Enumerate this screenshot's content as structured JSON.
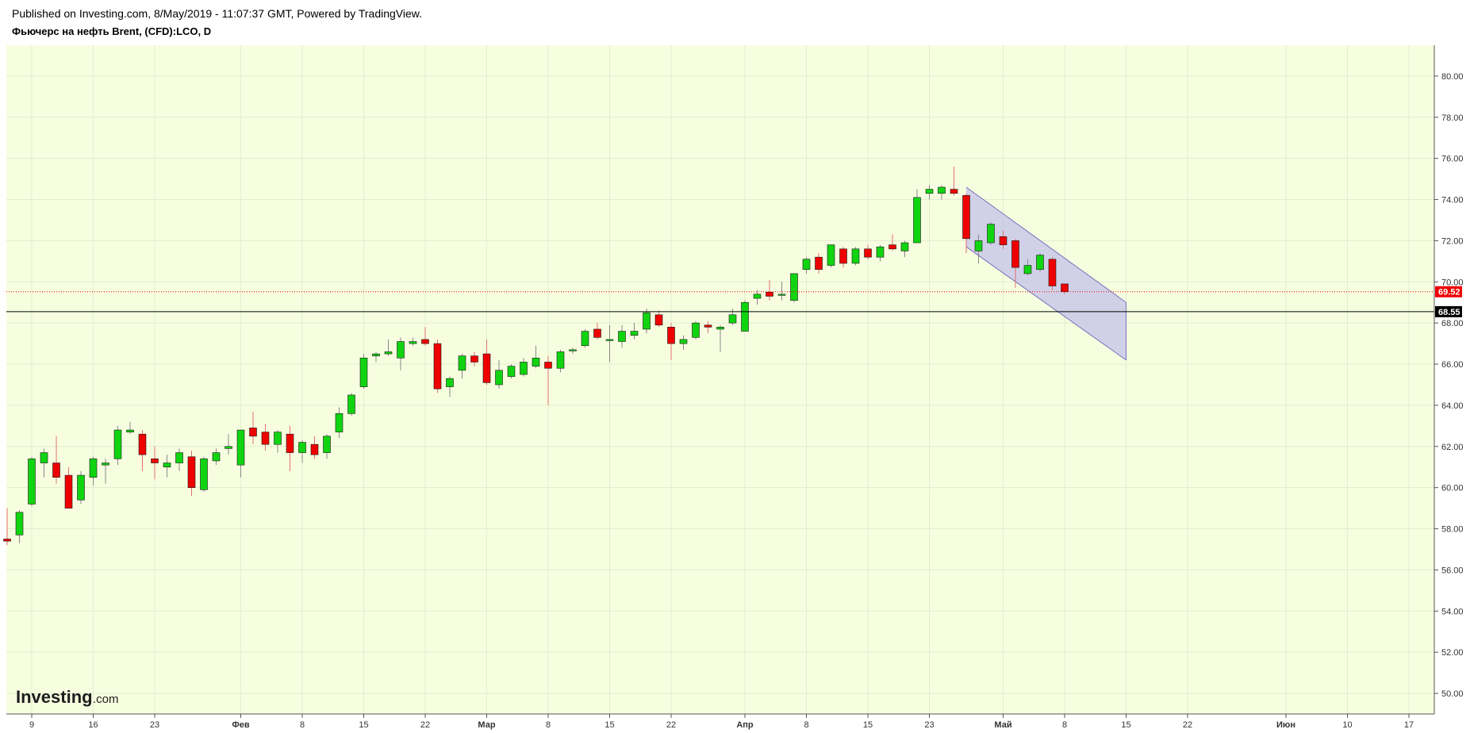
{
  "header": {
    "published": "Published on Investing.com, 8/May/2019 - 11:07:37 GMT, Powered by TradingView.",
    "symbol": "Фьючерс на нефть Brent, (CFD):LCO, D"
  },
  "logo": {
    "main": "Investing",
    "sub": ".com"
  },
  "colors": {
    "plot_bg": "#f7fee0",
    "up": "#11d411",
    "down": "#ef0000",
    "wick_up": "#888888",
    "wick_down": "#e07070",
    "channel_fill": "#c9c9e8",
    "channel_edge": "#7a6fbf",
    "last_price": "#ef0000",
    "ref_line": "#000000"
  },
  "chart_data": {
    "type": "candlestick",
    "title": "Фьючерс на нефть Brent, (CFD):LCO, D",
    "timeframe": "D",
    "ylim": [
      49,
      81.5
    ],
    "yticks": [
      "50.00",
      "52.00",
      "54.00",
      "56.00",
      "58.00",
      "60.00",
      "62.00",
      "64.00",
      "66.00",
      "68.00",
      "70.00",
      "72.00",
      "74.00",
      "76.00",
      "78.00",
      "80.00"
    ],
    "xlabels": [
      {
        "label": "9",
        "bold": false,
        "slot": 2
      },
      {
        "label": "16",
        "bold": false,
        "slot": 7
      },
      {
        "label": "23",
        "bold": false,
        "slot": 12
      },
      {
        "label": "Фев",
        "bold": true,
        "slot": 19
      },
      {
        "label": "8",
        "bold": false,
        "slot": 24
      },
      {
        "label": "15",
        "bold": false,
        "slot": 29
      },
      {
        "label": "22",
        "bold": false,
        "slot": 34
      },
      {
        "label": "Мар",
        "bold": true,
        "slot": 39
      },
      {
        "label": "8",
        "bold": false,
        "slot": 44
      },
      {
        "label": "15",
        "bold": false,
        "slot": 49
      },
      {
        "label": "22",
        "bold": false,
        "slot": 54
      },
      {
        "label": "Апр",
        "bold": true,
        "slot": 60
      },
      {
        "label": "8",
        "bold": false,
        "slot": 65
      },
      {
        "label": "15",
        "bold": false,
        "slot": 70
      },
      {
        "label": "23",
        "bold": false,
        "slot": 75
      },
      {
        "label": "Май",
        "bold": true,
        "slot": 81
      },
      {
        "label": "8",
        "bold": false,
        "slot": 86
      },
      {
        "label": "15",
        "bold": false,
        "slot": 91
      },
      {
        "label": "22",
        "bold": false,
        "slot": 96
      },
      {
        "label": "Июн",
        "bold": true,
        "slot": 104
      },
      {
        "label": "10",
        "bold": false,
        "slot": 109
      },
      {
        "label": "17",
        "bold": false,
        "slot": 114
      }
    ],
    "candles": [
      {
        "o": 57.5,
        "h": 59.0,
        "l": 57.2,
        "c": 57.4
      },
      {
        "o": 57.7,
        "h": 58.9,
        "l": 57.3,
        "c": 58.8
      },
      {
        "o": 59.2,
        "h": 61.5,
        "l": 59.1,
        "c": 61.4
      },
      {
        "o": 61.2,
        "h": 61.9,
        "l": 60.5,
        "c": 61.7
      },
      {
        "o": 61.2,
        "h": 62.5,
        "l": 60.2,
        "c": 60.5
      },
      {
        "o": 60.6,
        "h": 61.0,
        "l": 59.0,
        "c": 59.0
      },
      {
        "o": 59.4,
        "h": 60.8,
        "l": 59.2,
        "c": 60.6
      },
      {
        "o": 60.5,
        "h": 61.5,
        "l": 60.1,
        "c": 61.4
      },
      {
        "o": 61.1,
        "h": 61.4,
        "l": 60.2,
        "c": 61.2
      },
      {
        "o": 61.4,
        "h": 63.0,
        "l": 61.1,
        "c": 62.8
      },
      {
        "o": 62.7,
        "h": 63.2,
        "l": 62.6,
        "c": 62.8
      },
      {
        "o": 62.6,
        "h": 62.8,
        "l": 60.8,
        "c": 61.6
      },
      {
        "o": 61.4,
        "h": 62.0,
        "l": 60.4,
        "c": 61.2
      },
      {
        "o": 61.0,
        "h": 61.6,
        "l": 60.5,
        "c": 61.2
      },
      {
        "o": 61.2,
        "h": 61.9,
        "l": 60.8,
        "c": 61.7
      },
      {
        "o": 61.5,
        "h": 61.8,
        "l": 59.6,
        "c": 60.0
      },
      {
        "o": 59.9,
        "h": 61.5,
        "l": 59.8,
        "c": 61.4
      },
      {
        "o": 61.3,
        "h": 61.9,
        "l": 61.1,
        "c": 61.7
      },
      {
        "o": 61.9,
        "h": 62.6,
        "l": 61.6,
        "c": 62.0
      },
      {
        "o": 61.1,
        "h": 62.8,
        "l": 60.5,
        "c": 62.8
      },
      {
        "o": 62.9,
        "h": 63.7,
        "l": 62.1,
        "c": 62.5
      },
      {
        "o": 62.7,
        "h": 63.1,
        "l": 61.8,
        "c": 62.1
      },
      {
        "o": 62.1,
        "h": 62.8,
        "l": 61.7,
        "c": 62.7
      },
      {
        "o": 62.6,
        "h": 63.0,
        "l": 60.8,
        "c": 61.7
      },
      {
        "o": 61.7,
        "h": 62.3,
        "l": 61.2,
        "c": 62.2
      },
      {
        "o": 62.1,
        "h": 62.5,
        "l": 61.4,
        "c": 61.6
      },
      {
        "o": 61.7,
        "h": 62.6,
        "l": 61.4,
        "c": 62.5
      },
      {
        "o": 62.7,
        "h": 63.9,
        "l": 62.4,
        "c": 63.6
      },
      {
        "o": 63.6,
        "h": 64.6,
        "l": 63.5,
        "c": 64.5
      },
      {
        "o": 64.9,
        "h": 66.5,
        "l": 64.8,
        "c": 66.3
      },
      {
        "o": 66.4,
        "h": 66.6,
        "l": 66.1,
        "c": 66.5
      },
      {
        "o": 66.5,
        "h": 67.2,
        "l": 66.4,
        "c": 66.6
      },
      {
        "o": 66.3,
        "h": 67.3,
        "l": 65.7,
        "c": 67.1
      },
      {
        "o": 67.0,
        "h": 67.3,
        "l": 66.9,
        "c": 67.1
      },
      {
        "o": 67.2,
        "h": 67.8,
        "l": 66.9,
        "c": 67.0
      },
      {
        "o": 67.0,
        "h": 67.2,
        "l": 64.6,
        "c": 64.8
      },
      {
        "o": 64.9,
        "h": 65.4,
        "l": 64.4,
        "c": 65.3
      },
      {
        "o": 65.7,
        "h": 66.5,
        "l": 65.3,
        "c": 66.4
      },
      {
        "o": 66.4,
        "h": 66.6,
        "l": 65.9,
        "c": 66.1
      },
      {
        "o": 66.5,
        "h": 67.2,
        "l": 65.0,
        "c": 65.1
      },
      {
        "o": 65.0,
        "h": 66.2,
        "l": 64.8,
        "c": 65.7
      },
      {
        "o": 65.4,
        "h": 66.0,
        "l": 65.3,
        "c": 65.9
      },
      {
        "o": 65.5,
        "h": 66.3,
        "l": 65.4,
        "c": 66.1
      },
      {
        "o": 65.9,
        "h": 66.9,
        "l": 65.8,
        "c": 66.3
      },
      {
        "o": 66.1,
        "h": 66.4,
        "l": 64.0,
        "c": 65.8
      },
      {
        "o": 65.8,
        "h": 66.7,
        "l": 65.6,
        "c": 66.6
      },
      {
        "o": 66.7,
        "h": 66.8,
        "l": 66.5,
        "c": 66.7
      },
      {
        "o": 66.9,
        "h": 67.7,
        "l": 66.8,
        "c": 67.6
      },
      {
        "o": 67.7,
        "h": 68.0,
        "l": 67.2,
        "c": 67.3
      },
      {
        "o": 67.2,
        "h": 67.9,
        "l": 66.1,
        "c": 67.2
      },
      {
        "o": 67.1,
        "h": 67.9,
        "l": 66.8,
        "c": 67.6
      },
      {
        "o": 67.4,
        "h": 68.0,
        "l": 67.2,
        "c": 67.6
      },
      {
        "o": 67.7,
        "h": 68.7,
        "l": 67.5,
        "c": 68.5
      },
      {
        "o": 68.4,
        "h": 68.6,
        "l": 67.8,
        "c": 67.9
      },
      {
        "o": 67.8,
        "h": 68.0,
        "l": 66.2,
        "c": 67.0
      },
      {
        "o": 67.0,
        "h": 67.4,
        "l": 66.7,
        "c": 67.2
      },
      {
        "o": 67.3,
        "h": 68.1,
        "l": 67.2,
        "c": 68.0
      },
      {
        "o": 67.9,
        "h": 68.1,
        "l": 67.5,
        "c": 67.8
      },
      {
        "o": 67.7,
        "h": 67.9,
        "l": 66.6,
        "c": 67.8
      },
      {
        "o": 68.0,
        "h": 68.7,
        "l": 67.9,
        "c": 68.4
      },
      {
        "o": 67.6,
        "h": 69.1,
        "l": 67.6,
        "c": 69.0
      },
      {
        "o": 69.2,
        "h": 69.6,
        "l": 68.9,
        "c": 69.4
      },
      {
        "o": 69.5,
        "h": 70.1,
        "l": 69.1,
        "c": 69.3
      },
      {
        "o": 69.4,
        "h": 70.0,
        "l": 69.1,
        "c": 69.4
      },
      {
        "o": 69.1,
        "h": 70.4,
        "l": 69.0,
        "c": 70.4
      },
      {
        "o": 70.6,
        "h": 71.2,
        "l": 70.4,
        "c": 71.1
      },
      {
        "o": 71.2,
        "h": 71.4,
        "l": 70.4,
        "c": 70.6
      },
      {
        "o": 70.8,
        "h": 71.8,
        "l": 70.7,
        "c": 71.8
      },
      {
        "o": 71.6,
        "h": 71.7,
        "l": 70.7,
        "c": 70.9
      },
      {
        "o": 70.9,
        "h": 71.7,
        "l": 70.8,
        "c": 71.6
      },
      {
        "o": 71.6,
        "h": 71.8,
        "l": 71.1,
        "c": 71.2
      },
      {
        "o": 71.2,
        "h": 71.8,
        "l": 71.0,
        "c": 71.7
      },
      {
        "o": 71.8,
        "h": 72.3,
        "l": 71.5,
        "c": 71.6
      },
      {
        "o": 71.5,
        "h": 72.0,
        "l": 71.2,
        "c": 71.9
      },
      {
        "o": 71.9,
        "h": 74.5,
        "l": 71.9,
        "c": 74.1
      },
      {
        "o": 74.3,
        "h": 74.7,
        "l": 74.0,
        "c": 74.5
      },
      {
        "o": 74.3,
        "h": 74.7,
        "l": 74.0,
        "c": 74.6
      },
      {
        "o": 74.5,
        "h": 75.6,
        "l": 74.2,
        "c": 74.3
      },
      {
        "o": 74.2,
        "h": 74.3,
        "l": 71.4,
        "c": 72.1
      },
      {
        "o": 71.5,
        "h": 72.3,
        "l": 70.9,
        "c": 72.0
      },
      {
        "o": 71.9,
        "h": 72.9,
        "l": 71.8,
        "c": 72.8
      },
      {
        "o": 72.2,
        "h": 72.5,
        "l": 71.6,
        "c": 71.8
      },
      {
        "o": 72.0,
        "h": 72.1,
        "l": 69.7,
        "c": 70.7
      },
      {
        "o": 70.4,
        "h": 71.1,
        "l": 70.3,
        "c": 70.8
      },
      {
        "o": 70.6,
        "h": 71.4,
        "l": 70.5,
        "c": 71.3
      },
      {
        "o": 71.1,
        "h": 71.2,
        "l": 69.6,
        "c": 69.8
      },
      {
        "o": 69.9,
        "h": 69.9,
        "l": 69.4,
        "c": 69.52
      }
    ],
    "channel": {
      "upper": {
        "from": {
          "slot": 78,
          "price": 74.6
        },
        "to": {
          "slot": 91,
          "price": 69.0
        }
      },
      "lower": {
        "from": {
          "slot": 78,
          "price": 71.7
        },
        "to": {
          "slot": 91,
          "price": 66.2
        }
      }
    },
    "last_price": {
      "value": 69.52,
      "label": "69.52"
    },
    "horizontal_line": {
      "value": 68.55,
      "label": "68.55"
    }
  }
}
